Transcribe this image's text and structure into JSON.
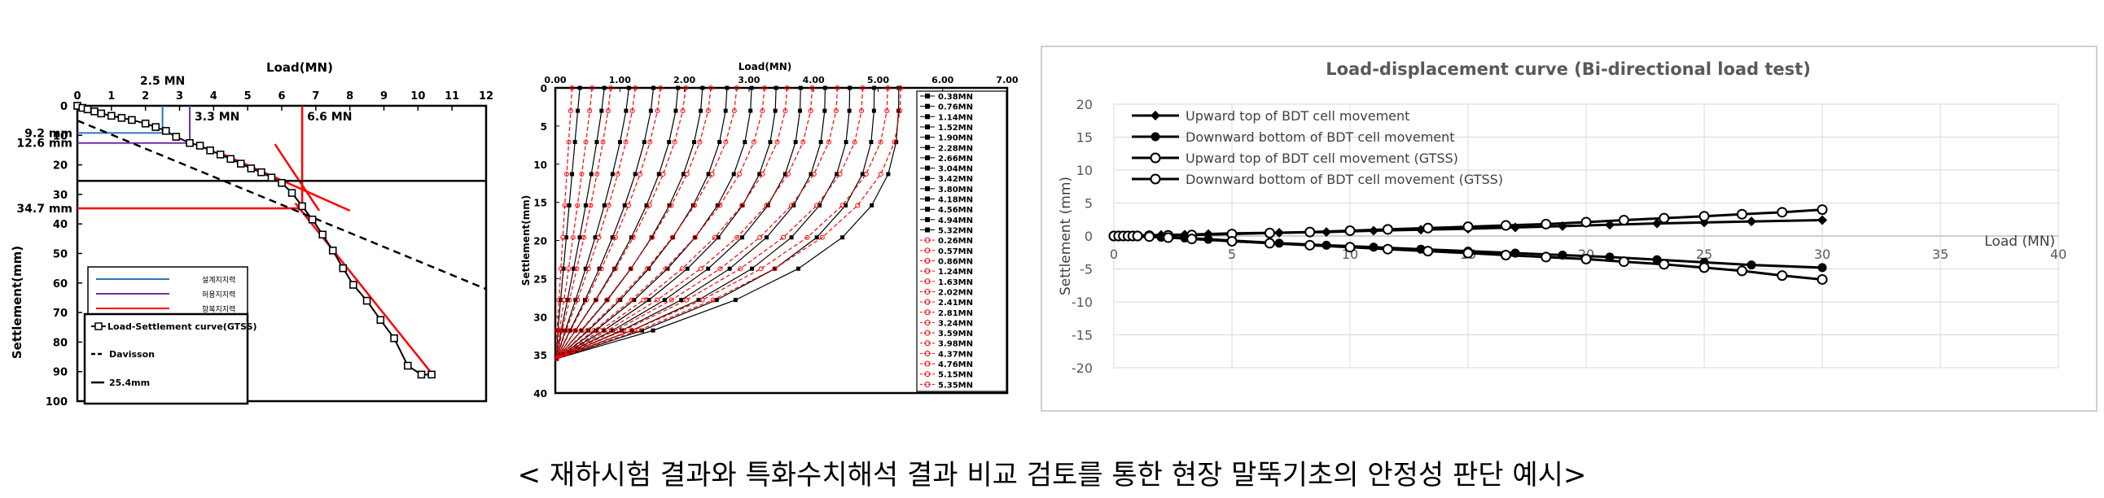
{
  "caption": "< 재하시험 결과와 특화수치해석 결과 비교 검토를 통한 현장 말뚝기초의 안정성 판단 예시>",
  "chart_data": [
    {
      "type": "line",
      "xlabel": "Load(MN)",
      "ylabel": "Settlement(mm)",
      "xlim": [
        0,
        12
      ],
      "ylim": [
        0,
        100
      ],
      "x_ticks": [
        "0",
        "1",
        "2",
        "3",
        "4",
        "5",
        "6",
        "7",
        "8",
        "9",
        "10",
        "11",
        "12"
      ],
      "y_ticks": [
        "0",
        "10",
        "20",
        "30",
        "40",
        "50",
        "60",
        "70",
        "80",
        "90",
        "100"
      ],
      "series": [
        {
          "name": "Load-Settlement curve(GTSS)",
          "color": "#000000",
          "x": [
            0,
            0.15,
            0.3,
            0.5,
            0.7,
            1.0,
            1.3,
            1.6,
            2.0,
            2.3,
            2.6,
            2.9,
            3.3,
            3.6,
            3.9,
            4.2,
            4.5,
            4.8,
            5.1,
            5.4,
            5.7,
            6.0,
            6.3,
            6.6,
            6.9,
            7.2,
            7.5,
            7.8,
            8.1,
            8.5,
            8.9,
            9.3,
            9.7,
            10.1,
            10.4
          ],
          "y": [
            0,
            0.7,
            1.2,
            1.9,
            2.6,
            3.4,
            4.1,
            4.8,
            6.0,
            7.2,
            8.5,
            10.5,
            12.6,
            13.5,
            15.1,
            16.5,
            18.0,
            19.6,
            21.2,
            22.5,
            24.3,
            26.1,
            29.5,
            34.0,
            38.5,
            43.6,
            49.0,
            55.0,
            60.6,
            66.0,
            72.5,
            78.7,
            88.0,
            91.0,
            91.0
          ]
        },
        {
          "name": "Davisson",
          "color": "#000000",
          "x": [
            0,
            12.2
          ],
          "y": [
            5,
            63
          ]
        },
        {
          "name": "25.4mm",
          "color": "#000000",
          "x": [
            0,
            12
          ],
          "y": [
            25.4,
            25.4
          ]
        }
      ],
      "legend_top": [
        "설계지지력",
        "허용지지력",
        "항복지지력"
      ],
      "legend_top_colors": [
        "#2e75b6",
        "#7030a0",
        "#ff0000"
      ],
      "annotations": [
        {
          "text": "2.5 MN",
          "x": 2.5,
          "y": 0
        },
        {
          "text": "3.3 MN",
          "x": 3.3,
          "y": 12.6
        },
        {
          "text": "6.6 MN",
          "x": 6.6,
          "y": 34.7
        },
        {
          "text": "9.2 mm",
          "x": 0,
          "y": 9.2
        },
        {
          "text": "12.6 mm",
          "x": 0,
          "y": 12.6
        },
        {
          "text": "34.7 mm",
          "x": 0,
          "y": 34.7
        }
      ]
    },
    {
      "type": "line",
      "xlabel": "Load(MN)",
      "ylabel": "Settlement(mm)",
      "xlim": [
        0,
        7
      ],
      "ylim": [
        0,
        40
      ],
      "x_ticks": [
        "0.00",
        "1.00",
        "2.00",
        "3.00",
        "4.00",
        "5.00",
        "6.00",
        "7.00"
      ],
      "y_ticks": [
        "0",
        "5",
        "10",
        "15",
        "20",
        "25",
        "30",
        "35",
        "40"
      ],
      "series_black": [
        "0.38MN",
        "0.76MN",
        "1.14MN",
        "1.52MN",
        "1.90MN",
        "2.28MN",
        "2.66MN",
        "3.04MN",
        "3.42MN",
        "3.80MN",
        "4.18MN",
        "4.56MN",
        "4.94MN",
        "5.32MN"
      ],
      "series_red": [
        "0.26MN",
        "0.57MN",
        "0.86MN",
        "1.24MN",
        "1.63MN",
        "2.02MN",
        "2.41MN",
        "2.81MN",
        "3.24MN",
        "3.59MN",
        "3.98MN",
        "4.37MN",
        "4.76MN",
        "5.15MN",
        "5.35MN"
      ],
      "black_color": "#000000",
      "red_color": "#ff0000"
    },
    {
      "type": "line",
      "title": "Load-displacement curve (Bi-directional load test)",
      "xlabel": "Load (MN)",
      "ylabel": "Settlement  (mm)",
      "xlim": [
        0,
        40
      ],
      "ylim": [
        -20,
        20
      ],
      "x_ticks": [
        "0",
        "5",
        "10",
        "15",
        "20",
        "25",
        "30",
        "35",
        "40"
      ],
      "y_ticks": [
        "20",
        "15",
        "10",
        "5",
        "0",
        "-5",
        "-10",
        "-15",
        "-20"
      ],
      "grid": true,
      "legend_position": "top-left",
      "series": [
        {
          "name": "Upward top of BDT cell movement",
          "marker": "diamond",
          "x": [
            0,
            0.2,
            0.5,
            1,
            2,
            3,
            4,
            5,
            7,
            9,
            11,
            13,
            15,
            17,
            19,
            21,
            23,
            25,
            27,
            30
          ],
          "y": [
            0,
            0,
            0.05,
            0.1,
            0.15,
            0.2,
            0.3,
            0.4,
            0.5,
            0.6,
            0.8,
            0.95,
            1.1,
            1.3,
            1.5,
            1.7,
            1.9,
            2.05,
            2.2,
            2.4
          ]
        },
        {
          "name": "Downward bottom of BDT cell movement",
          "marker": "filled-circle",
          "x": [
            0,
            0.2,
            0.5,
            1,
            2,
            3,
            4,
            5,
            7,
            9,
            11,
            13,
            15,
            17,
            19,
            21,
            23,
            25,
            27,
            30
          ],
          "y": [
            0,
            0,
            -0.05,
            -0.1,
            -0.2,
            -0.3,
            -0.5,
            -0.7,
            -1.1,
            -1.4,
            -1.7,
            -2.0,
            -2.3,
            -2.6,
            -2.9,
            -3.2,
            -3.6,
            -4.0,
            -4.4,
            -4.8
          ]
        },
        {
          "name": "Upward top of BDT cell movement (GTSS)",
          "marker": "open-circle",
          "x": [
            0,
            0.2,
            0.4,
            0.6,
            0.8,
            1.0,
            1.5,
            2.3,
            3.3,
            5,
            6.6,
            8.3,
            10,
            11.6,
            13.3,
            15,
            16.6,
            18.3,
            20,
            21.6,
            23.3,
            25,
            26.6,
            28.3,
            30
          ],
          "y": [
            0,
            0,
            0,
            0,
            0,
            0,
            0.05,
            0.1,
            0.15,
            0.3,
            0.45,
            0.6,
            0.8,
            1.0,
            1.2,
            1.4,
            1.6,
            1.8,
            2.1,
            2.4,
            2.7,
            3.0,
            3.3,
            3.6,
            4.0
          ]
        },
        {
          "name": "Downward bottom of BDT cell movement (GTSS)",
          "marker": "open-circle",
          "x": [
            0,
            0.2,
            0.4,
            0.6,
            0.8,
            1.0,
            1.5,
            2.3,
            3.3,
            5,
            6.6,
            8.3,
            10,
            11.6,
            13.3,
            15,
            16.6,
            18.3,
            20,
            21.6,
            23.3,
            25,
            26.6,
            28.3,
            30
          ],
          "y": [
            0,
            0,
            0,
            0,
            0,
            0,
            -0.1,
            -0.25,
            -0.45,
            -0.8,
            -1.1,
            -1.4,
            -1.7,
            -2.0,
            -2.3,
            -2.6,
            -2.9,
            -3.2,
            -3.5,
            -3.9,
            -4.3,
            -4.8,
            -5.3,
            -6.0,
            -6.6
          ]
        }
      ]
    }
  ]
}
